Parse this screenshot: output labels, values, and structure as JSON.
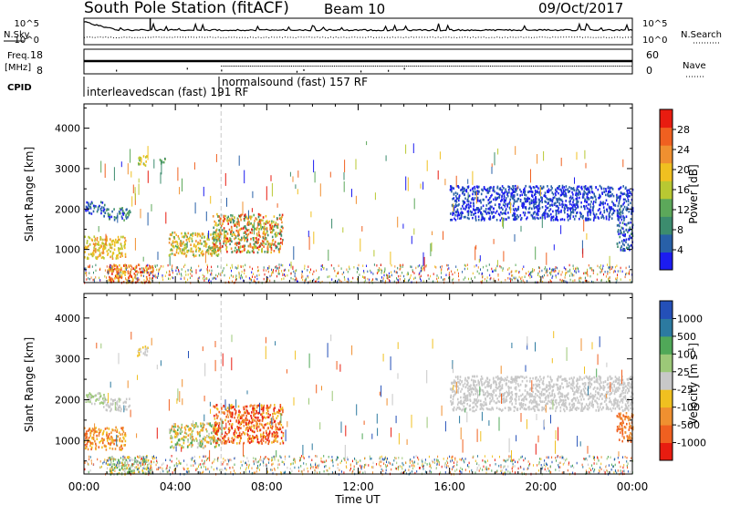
{
  "header": {
    "station": "South Pole Station (fitACF)",
    "beam": "Beam 10",
    "date": "09/Oct/2017"
  },
  "summary_panels": {
    "nsky_label": "N.Sky",
    "nsearch_label": "N.Search",
    "freq_label_1": "Freq.",
    "freq_label_2": "[MHz]",
    "nave_label": "Nave",
    "cpid_label": "CPID",
    "noise_ticks": [
      "10^5",
      "10^0"
    ],
    "freq_ticks": [
      "18",
      "8"
    ],
    "nave_ticks": [
      "60",
      "0"
    ],
    "cpid_modes": [
      {
        "text": "interleavedscan (fast)",
        "id": "191",
        "suffix": "RF"
      },
      {
        "text": "normalsound (fast)",
        "id": "157",
        "suffix": "RF"
      }
    ]
  },
  "colors": {
    "power": [
      "#1c1cf0",
      "#2860a8",
      "#3c8c6e",
      "#5ca85a",
      "#b8c832",
      "#f0c020",
      "#f09030",
      "#f06020",
      "#e81c10"
    ],
    "velocity": [
      "#e81c10",
      "#f06020",
      "#f09030",
      "#f0c020",
      "#c8c8c8",
      "#9cc878",
      "#50a858",
      "#2c7aa0",
      "#2450b8"
    ],
    "time_marker": "#c8c8c8"
  },
  "chart_data": [
    {
      "type": "heatmap",
      "name": "Power",
      "ylabel": "Slant Range [km]",
      "y_ticks": [
        1000,
        2000,
        3000,
        4000
      ],
      "ylim": [
        180,
        4600
      ],
      "colorbar": {
        "label": "Power [dB]",
        "ticks": [
          4,
          8,
          12,
          16,
          20,
          24,
          28
        ],
        "range": [
          0,
          32
        ]
      },
      "regions": [
        {
          "t0": 0.0,
          "t1": 1.8,
          "r0": 800,
          "r1": 1350,
          "c": [
            4,
            6
          ]
        },
        {
          "t0": 0.8,
          "t1": 2.0,
          "r0": 1750,
          "r1": 2050,
          "c": [
            0,
            3
          ]
        },
        {
          "t0": 0.0,
          "t1": 0.9,
          "r0": 1900,
          "r1": 2200,
          "c": [
            0,
            2
          ]
        },
        {
          "t0": 1.0,
          "t1": 3.0,
          "r0": 200,
          "r1": 650,
          "c": [
            5,
            8
          ]
        },
        {
          "t0": 2.3,
          "t1": 2.8,
          "r0": 3100,
          "r1": 3350,
          "c": [
            3,
            5
          ]
        },
        {
          "t0": 3.3,
          "t1": 3.6,
          "r0": 3150,
          "r1": 3300,
          "c": [
            2,
            4
          ]
        },
        {
          "t0": 3.7,
          "t1": 5.9,
          "r0": 850,
          "r1": 1450,
          "c": [
            3,
            6
          ]
        },
        {
          "t0": 5.6,
          "t1": 8.7,
          "r0": 950,
          "r1": 1900,
          "c": [
            2,
            8
          ]
        },
        {
          "t0": 16.0,
          "t1": 24.0,
          "r0": 1750,
          "r1": 2600,
          "c": [
            0,
            1
          ]
        },
        {
          "t0": 23.3,
          "t1": 24.0,
          "r0": 1000,
          "r1": 1700,
          "c": [
            0,
            2
          ]
        }
      ]
    },
    {
      "type": "heatmap",
      "name": "Velocity",
      "ylabel": "Slant Range [km]",
      "xlabel": "Time UT",
      "x_ticks": [
        "00:00",
        "04:00",
        "08:00",
        "12:00",
        "16:00",
        "20:00",
        "00:00"
      ],
      "xlim": [
        0,
        24
      ],
      "y_ticks": [
        1000,
        2000,
        3000,
        4000
      ],
      "ylim": [
        180,
        4600
      ],
      "colorbar": {
        "label": "Velocity [m s^-1]",
        "ticks": [
          1000,
          500,
          100,
          25,
          -25,
          -100,
          -500,
          -1000
        ]
      },
      "regions": [
        {
          "t0": 0.0,
          "t1": 1.8,
          "r0": 800,
          "r1": 1350,
          "c": [
            1,
            3
          ]
        },
        {
          "t0": 0.8,
          "t1": 2.0,
          "r0": 1750,
          "r1": 2050,
          "c": [
            4,
            4
          ]
        },
        {
          "t0": 0.0,
          "t1": 0.9,
          "r0": 1900,
          "r1": 2200,
          "c": [
            4,
            5
          ]
        },
        {
          "t0": 1.0,
          "t1": 3.0,
          "r0": 200,
          "r1": 650,
          "c": [
            3,
            6
          ]
        },
        {
          "t0": 2.3,
          "t1": 2.8,
          "r0": 3100,
          "r1": 3350,
          "c": [
            3,
            4
          ]
        },
        {
          "t0": 3.7,
          "t1": 5.9,
          "r0": 850,
          "r1": 1450,
          "c": [
            2,
            6
          ]
        },
        {
          "t0": 5.6,
          "t1": 8.7,
          "r0": 950,
          "r1": 1900,
          "c": [
            0,
            3
          ]
        },
        {
          "t0": 16.0,
          "t1": 24.0,
          "r0": 1750,
          "r1": 2600,
          "c": [
            4,
            4
          ]
        },
        {
          "t0": 23.3,
          "t1": 24.0,
          "r0": 1000,
          "r1": 1700,
          "c": [
            1,
            2
          ]
        }
      ]
    }
  ]
}
